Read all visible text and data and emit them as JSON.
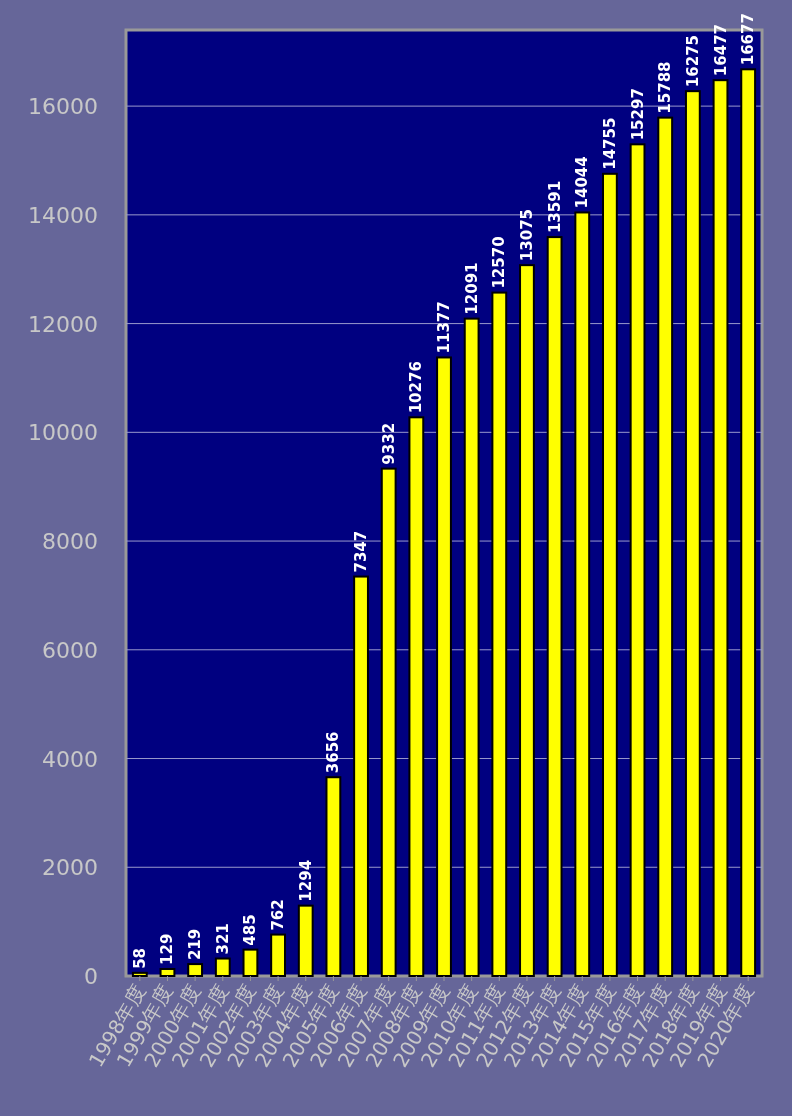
{
  "chart_data": {
    "type": "bar",
    "categories": [
      "1998年度",
      "1999年度",
      "2000年度",
      "2001年度",
      "2002年度",
      "2003年度",
      "2004年度",
      "2005年度",
      "2006年度",
      "2007年度",
      "2008年度",
      "2009年度",
      "2010年度",
      "2011年度",
      "2012年度",
      "2013年度",
      "2014年度",
      "2015年度",
      "2016年度",
      "2017年度",
      "2018年度",
      "2019年度",
      "2020年度"
    ],
    "values": [
      58,
      129,
      219,
      321,
      485,
      762,
      1294,
      3656,
      7347,
      9332,
      10276,
      11377,
      12091,
      12570,
      13075,
      13591,
      14044,
      14755,
      15297,
      15788,
      16275,
      16477,
      16677
    ],
    "color": "#ffff00",
    "ylim": [
      0,
      17400
    ],
    "yticks": [
      0,
      2000,
      4000,
      6000,
      8000,
      10000,
      12000,
      14000,
      16000
    ],
    "grid": "y",
    "data_labels": true
  }
}
